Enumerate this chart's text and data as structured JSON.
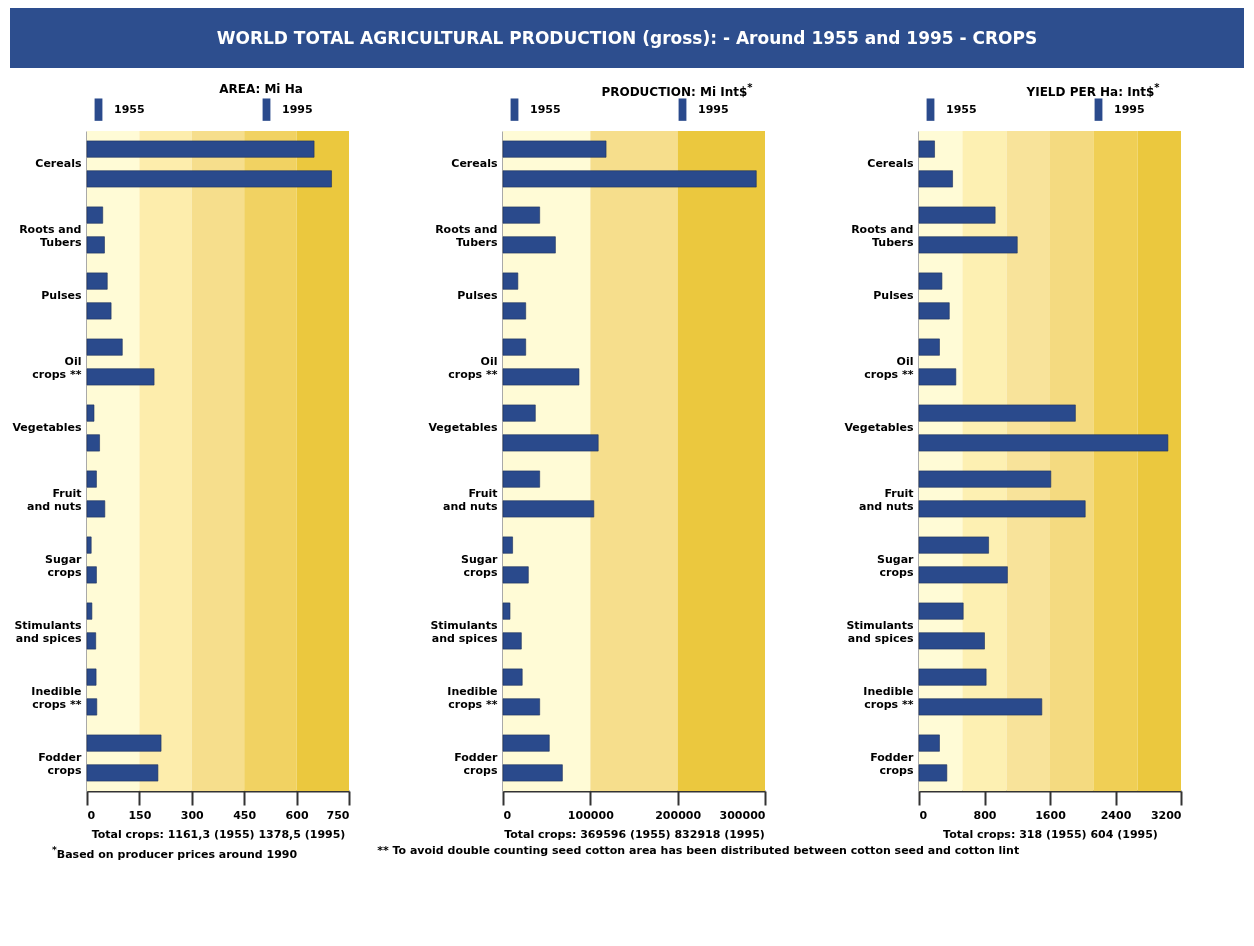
{
  "chart_data": [
    {
      "type": "bar",
      "orientation": "horizontal",
      "title": "WORLD TOTAL AGRICULTURAL PRODUCTION (gross): - Around 1955 and 1995 - CROPS",
      "subtitle": "AREA: Mi Ha",
      "xlabel": "Total crops: 1161,3 (1955)  1378,5 (1995)",
      "categories": [
        "Cereals",
        "Roots and Tubers",
        "Pulses",
        "Oil crops **",
        "Vegetables",
        "Fruit and nuts",
        "Sugar crops",
        "Stimulants and spices",
        "Inedible crops **",
        "Fodder crops"
      ],
      "series": [
        {
          "name": "1955",
          "color": "#2a4a8c",
          "values": [
            650,
            45,
            58,
            101,
            20,
            27,
            12,
            14,
            26,
            212
          ]
        },
        {
          "name": "1995",
          "color": "#2a4a8c",
          "values": [
            700,
            50,
            69,
            192,
            36,
            51,
            27,
            25,
            28,
            203
          ]
        }
      ],
      "xlim": [
        0,
        750
      ],
      "xticks": [
        0,
        150,
        300,
        450,
        600,
        750
      ],
      "legend": "top",
      "bands": [
        {
          "axis": "x",
          "from": 0,
          "to": 150,
          "color": "#fffbd6"
        },
        {
          "axis": "x",
          "from": 150,
          "to": 300,
          "color": "#fdedac"
        },
        {
          "axis": "x",
          "from": 300,
          "to": 450,
          "color": "#f6de8c"
        },
        {
          "axis": "x",
          "from": 450,
          "to": 600,
          "color": "#f1d262"
        },
        {
          "axis": "x",
          "from": 600,
          "to": 750,
          "color": "#ebc83e"
        }
      ],
      "annotations": [
        "$^{*}$Based on producer prices around 1990"
      ]
    },
    {
      "type": "bar",
      "orientation": "horizontal",
      "subtitle": "PRODUCTION: Mi Int$$^{*}$",
      "xlabel": "Total crops: 369596 (1955)  832918 (1995)",
      "categories": [
        "Cereals",
        "Roots and Tubers",
        "Pulses",
        "Oil crops **",
        "Vegetables",
        "Fruit and nuts",
        "Sugar crops",
        "Stimulants and spices",
        "Inedible crops **",
        "Fodder crops"
      ],
      "series": [
        {
          "name": "1955",
          "color": "#2a4a8c",
          "values": [
            118000,
            42000,
            17000,
            26000,
            37000,
            42000,
            11000,
            8000,
            22000,
            53000
          ]
        },
        {
          "name": "1995",
          "color": "#2a4a8c",
          "values": [
            290000,
            60000,
            26000,
            87000,
            109000,
            104000,
            29000,
            21000,
            42000,
            68000
          ]
        }
      ],
      "xlim": [
        0,
        300000
      ],
      "xticks": [
        0,
        100000,
        200000,
        300000
      ],
      "legend": "top",
      "bands": [
        {
          "axis": "x",
          "from": 0,
          "to": 100000,
          "color": "#fffbd6"
        },
        {
          "axis": "x",
          "from": 100000,
          "to": 200000,
          "color": "#f6de8c"
        },
        {
          "axis": "x",
          "from": 200000,
          "to": 300000,
          "color": "#ebc83e"
        }
      ],
      "annotations": [
        "** To avoid double counting seed cotton area has been distributed between cotton seed and cotton lint"
      ]
    },
    {
      "type": "bar",
      "orientation": "horizontal",
      "subtitle": "YIELD PER Ha: Int$$^{*}$",
      "xlabel": "Total crops: 318 (1955)  604 (1995)",
      "categories": [
        "Cereals",
        "Roots and Tubers",
        "Pulses",
        "Oil crops **",
        "Vegetables",
        "Fruit and nuts",
        "Sugar crops",
        "Stimulants and spices",
        "Inedible crops **",
        "Fodder crops"
      ],
      "series": [
        {
          "name": "1955",
          "color": "#2a4a8c",
          "values": [
            190,
            930,
            280,
            250,
            1910,
            1610,
            850,
            540,
            820,
            250
          ]
        },
        {
          "name": "1995",
          "color": "#2a4a8c",
          "values": [
            410,
            1200,
            370,
            450,
            3040,
            2030,
            1080,
            800,
            1500,
            340
          ]
        }
      ],
      "xlim": [
        0,
        3200
      ],
      "xticks": [
        0,
        800,
        1600,
        2400,
        3200
      ],
      "legend": "top",
      "bands": [
        {
          "axis": "x",
          "from": 0,
          "to": 530,
          "color": "#fffbd6"
        },
        {
          "axis": "x",
          "from": 530,
          "to": 1070,
          "color": "#fdf0b2"
        },
        {
          "axis": "x",
          "from": 1070,
          "to": 1600,
          "color": "#f8e39a"
        },
        {
          "axis": "x",
          "from": 1600,
          "to": 2130,
          "color": "#f4da80"
        },
        {
          "axis": "x",
          "from": 2130,
          "to": 2670,
          "color": "#f0cf55"
        },
        {
          "axis": "x",
          "from": 2670,
          "to": 3200,
          "color": "#ebc83e"
        }
      ]
    }
  ]
}
